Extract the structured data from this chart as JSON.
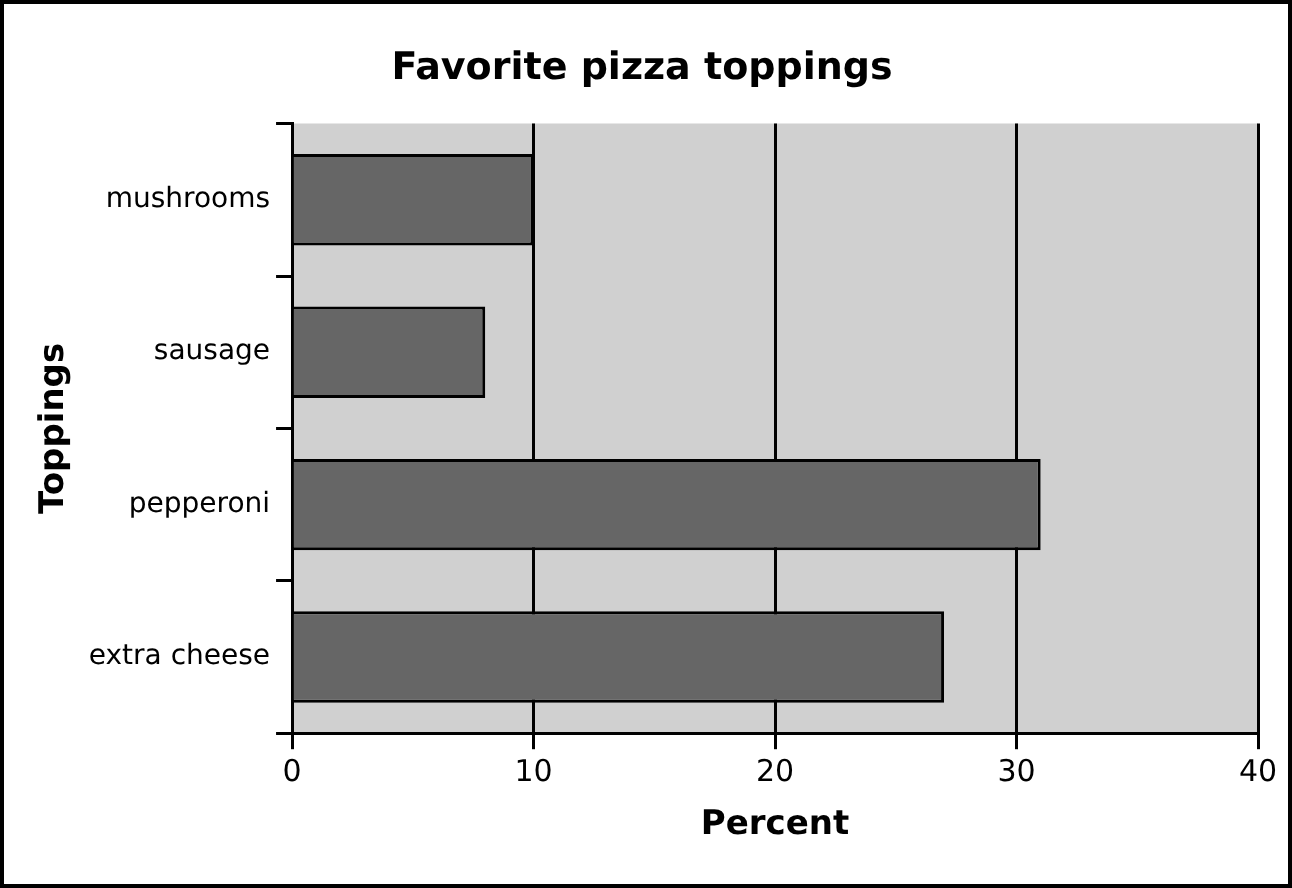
{
  "chart_data": {
    "type": "bar",
    "orientation": "horizontal",
    "title": "Favorite pizza toppings",
    "xlabel": "Percent",
    "ylabel": "Toppings",
    "categories": [
      "mushrooms",
      "sausage",
      "pepperoni",
      "extra cheese"
    ],
    "values": [
      10,
      8,
      31,
      27
    ],
    "color": "#666666",
    "xlim": [
      0,
      40
    ],
    "xticks": [
      0,
      10,
      20,
      30,
      40
    ],
    "grid": "x",
    "legend": false
  }
}
